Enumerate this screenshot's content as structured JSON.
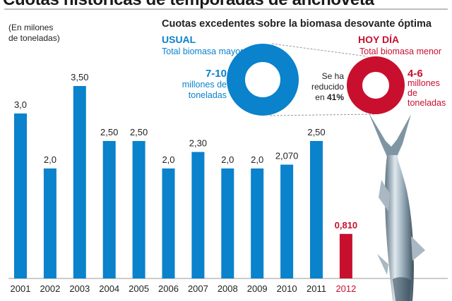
{
  "header": {
    "title": "Cuotas históricas de temporadas de anchoveta",
    "unit_note": "(En milones\nde toneladas)"
  },
  "inset": {
    "title": "Cuotas excedentes sobre la biomasa desovante óptima",
    "usual": {
      "heading": "USUAL",
      "subheading": "Total biomasa mayor",
      "value": "7-10",
      "unit": "millones de toneladas",
      "color": "#0a82cc"
    },
    "today": {
      "heading": "HOY DÍA",
      "subheading": "Total biomasa menor",
      "value": "4-6",
      "unit": "millones de toneladas",
      "color": "#c8102e"
    },
    "reduction": {
      "prefix": "Se ha reducido en",
      "percent": "41%"
    }
  },
  "chart_data": {
    "type": "bar",
    "title": "Cuotas históricas de temporadas de anchoveta",
    "ylabel": "En milones de toneladas",
    "xlabel": "",
    "categories": [
      "2001",
      "2002",
      "2003",
      "2004",
      "2005",
      "2006",
      "2007",
      "2008",
      "2009",
      "2010",
      "2011",
      "2012"
    ],
    "values": [
      3.0,
      2.0,
      3.5,
      2.5,
      2.5,
      2.0,
      2.3,
      2.0,
      2.0,
      2.07,
      2.5,
      0.81
    ],
    "labels": [
      "3,0",
      "2,0",
      "3,50",
      "2,50",
      "2,50",
      "2,0",
      "2,30",
      "2,0",
      "2,0",
      "2,070",
      "2,50",
      "0,810"
    ],
    "highlight_index": 11,
    "colors": {
      "default": "#0a82cc",
      "highlight": "#c8102e"
    },
    "ylim": [
      0,
      3.8
    ],
    "grid": false,
    "legend": "none"
  }
}
